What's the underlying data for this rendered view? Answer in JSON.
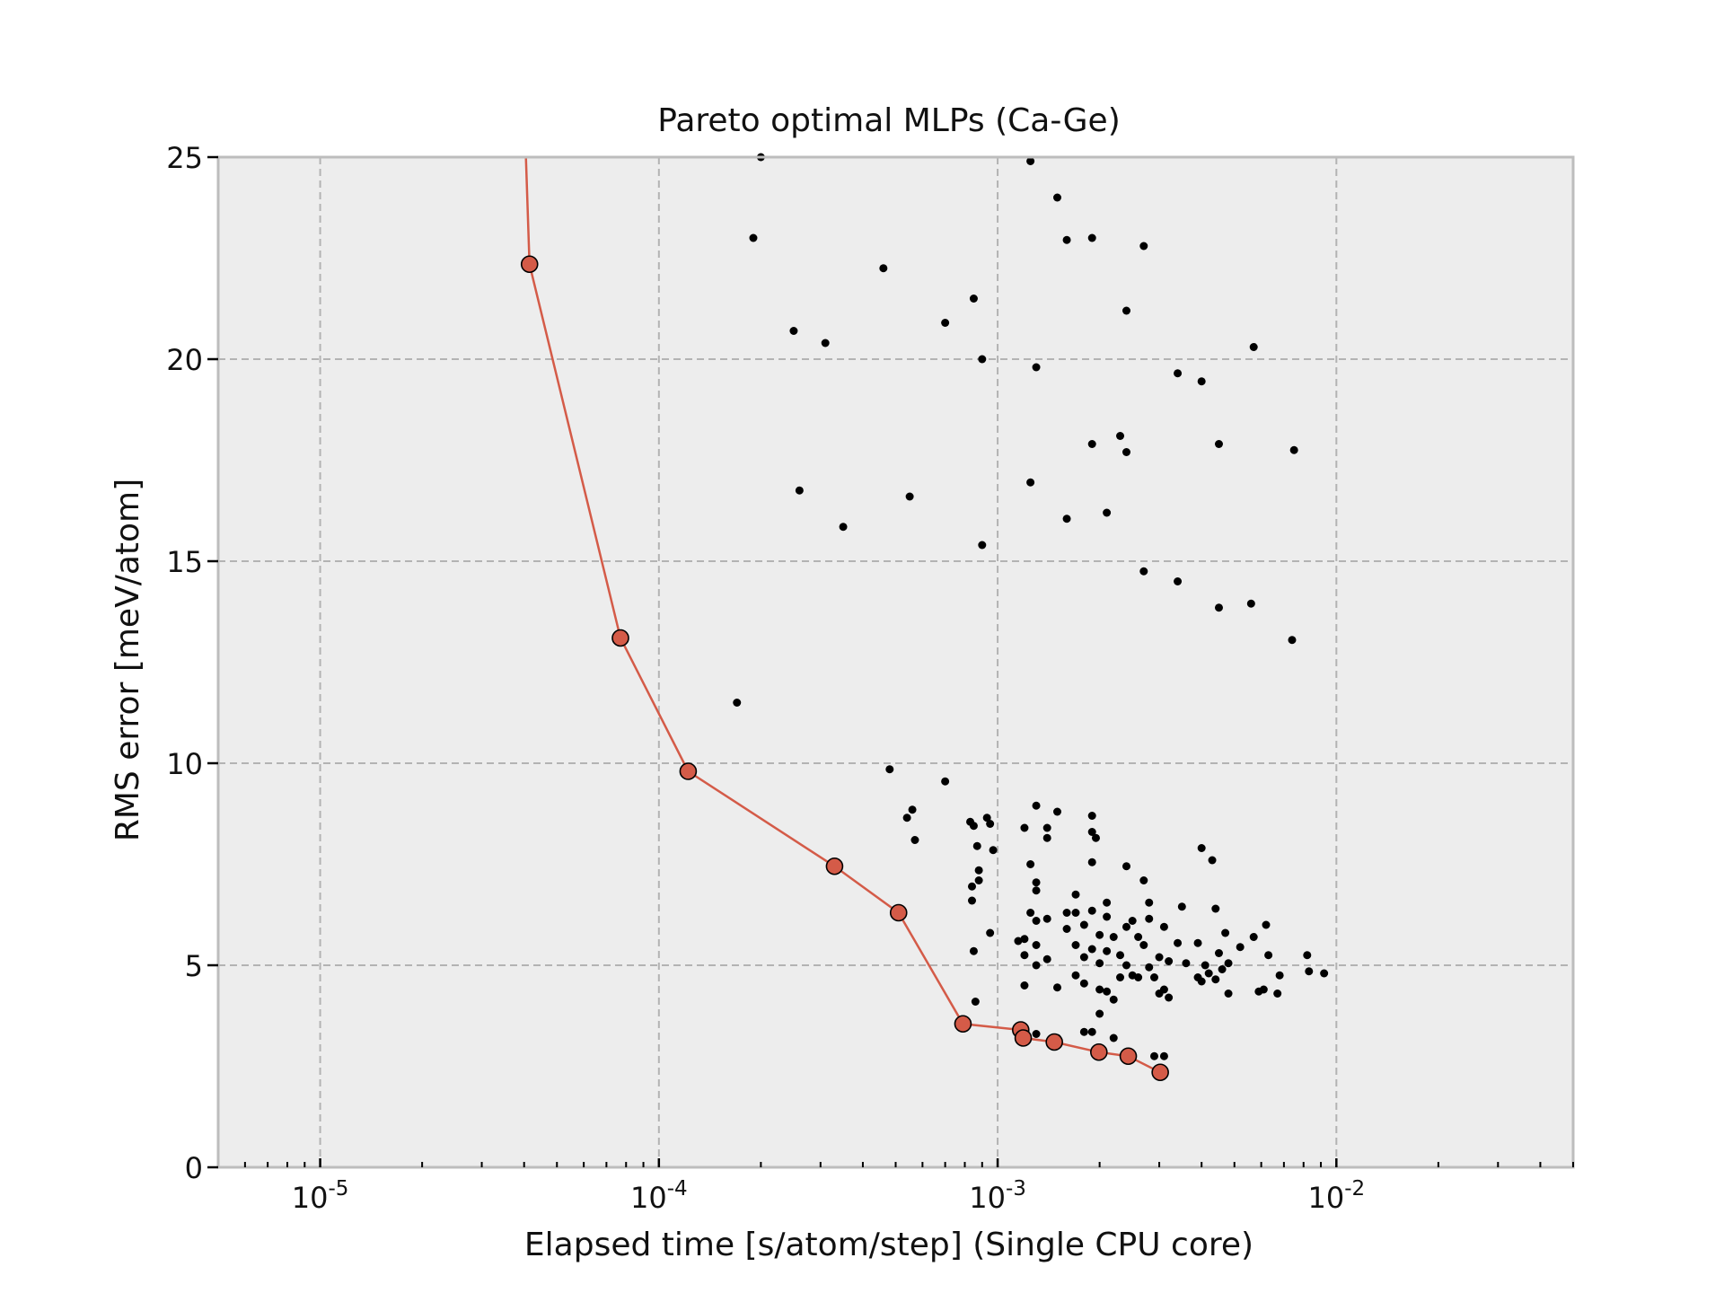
{
  "colors": {
    "plot_background": "#ededed",
    "frame": "#bdbdbd",
    "grid": "#b3b3b3",
    "scatter": "#000000",
    "pareto_line": "#d45b48",
    "pareto_marker": "#d45b48",
    "pareto_marker_edge": "#000000"
  },
  "chart_data": {
    "type": "scatter",
    "title": "Pareto optimal MLPs (Ca-Ge)",
    "xlabel": "Elapsed time [s/atom/step] (Single CPU core)",
    "ylabel": "RMS error [meV/atom]",
    "xscale": "log",
    "xlim": [
      5e-06,
      0.05
    ],
    "ylim": [
      0,
      25
    ],
    "grid": true,
    "x_ticks": [
      {
        "value": 1e-05,
        "base": "10",
        "exp": "-5"
      },
      {
        "value": 0.0001,
        "base": "10",
        "exp": "-4"
      },
      {
        "value": 0.001,
        "base": "10",
        "exp": "-3"
      },
      {
        "value": 0.01,
        "base": "10",
        "exp": "-2"
      }
    ],
    "y_ticks": [
      0,
      5,
      10,
      15,
      20,
      25
    ],
    "series": [
      {
        "kind": "scatter",
        "points": [
          [
            0.0002,
            25.0
          ],
          [
            0.00125,
            24.9
          ],
          [
            0.0015,
            24.0
          ],
          [
            0.00019,
            23.0
          ],
          [
            0.0016,
            22.95
          ],
          [
            0.0019,
            23.0
          ],
          [
            0.0027,
            22.8
          ],
          [
            0.00046,
            22.25
          ],
          [
            0.00085,
            21.5
          ],
          [
            0.0024,
            21.2
          ],
          [
            0.0007,
            20.9
          ],
          [
            0.00025,
            20.7
          ],
          [
            0.00031,
            20.4
          ],
          [
            0.0057,
            20.3
          ],
          [
            0.0009,
            20.0
          ],
          [
            0.0013,
            19.8
          ],
          [
            0.0034,
            19.65
          ],
          [
            0.004,
            19.45
          ],
          [
            0.0023,
            18.1
          ],
          [
            0.0019,
            17.9
          ],
          [
            0.0045,
            17.9
          ],
          [
            0.0024,
            17.7
          ],
          [
            0.0075,
            17.75
          ],
          [
            0.00125,
            16.95
          ],
          [
            0.00026,
            16.75
          ],
          [
            0.00055,
            16.6
          ],
          [
            0.0021,
            16.2
          ],
          [
            0.0016,
            16.05
          ],
          [
            0.00035,
            15.85
          ],
          [
            0.0009,
            15.4
          ],
          [
            0.0027,
            14.75
          ],
          [
            0.0034,
            14.5
          ],
          [
            0.0045,
            13.85
          ],
          [
            0.0056,
            13.95
          ],
          [
            0.0074,
            13.05
          ],
          [
            0.00017,
            11.5
          ],
          [
            0.00048,
            9.85
          ],
          [
            0.0007,
            9.55
          ],
          [
            0.00056,
            8.85
          ],
          [
            0.00054,
            8.65
          ],
          [
            0.00083,
            8.55
          ],
          [
            0.00085,
            8.45
          ],
          [
            0.00093,
            8.65
          ],
          [
            0.00095,
            8.5
          ],
          [
            0.0012,
            8.4
          ],
          [
            0.0014,
            8.4
          ],
          [
            0.0013,
            8.95
          ],
          [
            0.0015,
            8.8
          ],
          [
            0.0019,
            8.7
          ],
          [
            0.0019,
            8.3
          ],
          [
            0.00195,
            8.15
          ],
          [
            0.0014,
            8.15
          ],
          [
            0.00057,
            8.1
          ],
          [
            0.00087,
            7.95
          ],
          [
            0.00097,
            7.85
          ],
          [
            0.004,
            7.9
          ],
          [
            0.0043,
            7.6
          ],
          [
            0.00125,
            7.5
          ],
          [
            0.0019,
            7.55
          ],
          [
            0.0024,
            7.45
          ],
          [
            0.00088,
            7.35
          ],
          [
            0.00088,
            7.1
          ],
          [
            0.0027,
            7.1
          ],
          [
            0.0013,
            7.05
          ],
          [
            0.00084,
            6.95
          ],
          [
            0.0013,
            6.85
          ],
          [
            0.0017,
            6.75
          ],
          [
            0.0021,
            6.55
          ],
          [
            0.0028,
            6.55
          ],
          [
            0.0035,
            6.45
          ],
          [
            0.0044,
            6.4
          ],
          [
            0.00084,
            6.6
          ],
          [
            0.00125,
            6.3
          ],
          [
            0.0016,
            6.3
          ],
          [
            0.0017,
            6.3
          ],
          [
            0.0019,
            6.35
          ],
          [
            0.0021,
            6.2
          ],
          [
            0.0025,
            6.1
          ],
          [
            0.0028,
            6.15
          ],
          [
            0.0062,
            6.0
          ],
          [
            0.0013,
            6.1
          ],
          [
            0.0014,
            6.15
          ],
          [
            0.0018,
            6.0
          ],
          [
            0.0024,
            5.95
          ],
          [
            0.0031,
            5.95
          ],
          [
            0.0047,
            5.8
          ],
          [
            0.00095,
            5.8
          ],
          [
            0.0012,
            5.65
          ],
          [
            0.0016,
            5.9
          ],
          [
            0.002,
            5.75
          ],
          [
            0.0022,
            5.7
          ],
          [
            0.0026,
            5.7
          ],
          [
            0.0034,
            5.55
          ],
          [
            0.0039,
            5.55
          ],
          [
            0.0057,
            5.7
          ],
          [
            0.00115,
            5.6
          ],
          [
            0.0013,
            5.5
          ],
          [
            0.0017,
            5.5
          ],
          [
            0.0019,
            5.4
          ],
          [
            0.0021,
            5.35
          ],
          [
            0.0023,
            5.25
          ],
          [
            0.0027,
            5.5
          ],
          [
            0.003,
            5.2
          ],
          [
            0.0045,
            5.3
          ],
          [
            0.0052,
            5.45
          ],
          [
            0.00085,
            5.35
          ],
          [
            0.0012,
            5.25
          ],
          [
            0.0014,
            5.15
          ],
          [
            0.0018,
            5.2
          ],
          [
            0.002,
            5.05
          ],
          [
            0.0024,
            5.0
          ],
          [
            0.0028,
            4.95
          ],
          [
            0.0032,
            5.1
          ],
          [
            0.0036,
            5.05
          ],
          [
            0.0041,
            5.0
          ],
          [
            0.0048,
            5.05
          ],
          [
            0.0063,
            5.25
          ],
          [
            0.0082,
            5.25
          ],
          [
            0.0013,
            5.0
          ],
          [
            0.0025,
            4.75
          ],
          [
            0.0029,
            4.7
          ],
          [
            0.0042,
            4.8
          ],
          [
            0.0046,
            4.9
          ],
          [
            0.0068,
            4.75
          ],
          [
            0.0083,
            4.85
          ],
          [
            0.0092,
            4.8
          ],
          [
            0.0017,
            4.75
          ],
          [
            0.0023,
            4.7
          ],
          [
            0.0026,
            4.7
          ],
          [
            0.0039,
            4.7
          ],
          [
            0.004,
            4.6
          ],
          [
            0.0044,
            4.65
          ],
          [
            0.0018,
            4.55
          ],
          [
            0.0015,
            4.45
          ],
          [
            0.0012,
            4.5
          ],
          [
            0.0021,
            4.35
          ],
          [
            0.002,
            4.4
          ],
          [
            0.003,
            4.3
          ],
          [
            0.0031,
            4.4
          ],
          [
            0.0032,
            4.2
          ],
          [
            0.0048,
            4.3
          ],
          [
            0.0059,
            4.35
          ],
          [
            0.0061,
            4.4
          ],
          [
            0.0067,
            4.3
          ],
          [
            0.00086,
            4.1
          ],
          [
            0.0022,
            4.15
          ],
          [
            0.002,
            3.8
          ],
          [
            0.0018,
            3.35
          ],
          [
            0.0012,
            3.3
          ],
          [
            0.0013,
            3.3
          ],
          [
            0.0019,
            3.35
          ],
          [
            0.0015,
            3.2
          ],
          [
            0.0022,
            3.2
          ],
          [
            0.0029,
            2.75
          ],
          [
            0.0031,
            2.75
          ]
        ]
      },
      {
        "kind": "line",
        "points": [
          [
            4.05e-05,
            25.0
          ],
          [
            4.15e-05,
            22.35
          ],
          [
            7.7e-05,
            13.1
          ],
          [
            0.000122,
            9.8
          ],
          [
            0.00033,
            7.45
          ],
          [
            0.00051,
            6.3
          ],
          [
            0.00079,
            3.55
          ],
          [
            0.00117,
            3.4
          ],
          [
            0.00119,
            3.2
          ],
          [
            0.00147,
            3.1
          ],
          [
            0.00199,
            2.85
          ],
          [
            0.00243,
            2.75
          ],
          [
            0.00302,
            2.35
          ]
        ]
      }
    ]
  }
}
